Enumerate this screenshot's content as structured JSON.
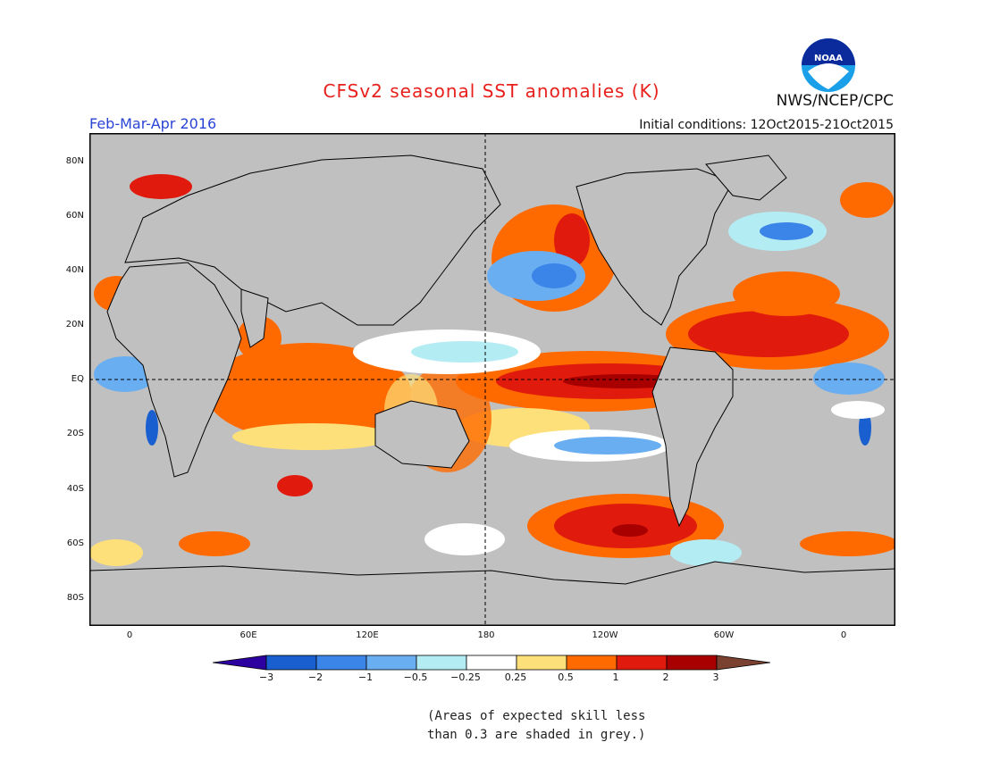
{
  "header": {
    "title": "CFSv2 seasonal SST anomalies (K)",
    "agency": "NWS/NCEP/CPC",
    "logo_text": "NOAA",
    "period": "Feb-Mar-Apr 2016",
    "initial_conditions": "Initial conditions: 12Oct2015-21Oct2015"
  },
  "map": {
    "lat_labels": [
      "80N",
      "60N",
      "40N",
      "20N",
      "EQ",
      "20S",
      "40S",
      "60S",
      "80S"
    ],
    "lon_labels": [
      "0",
      "60E",
      "120E",
      "180",
      "120W",
      "60W",
      "0"
    ],
    "missing_color": "#c0c0c0",
    "land_color": "#c0c0c0"
  },
  "colorbar": {
    "ticks": [
      "−3",
      "−2",
      "−1",
      "−0.5",
      "−0.25",
      "0.25",
      "0.5",
      "1",
      "2",
      "3"
    ],
    "colors": [
      "#2d00a0",
      "#1a5fd0",
      "#3b84e8",
      "#6aaef2",
      "#b4ecf4",
      "#ffffff",
      "#fde07a",
      "#ff6a00",
      "#e01a0c",
      "#a80000",
      "#7a4030"
    ]
  },
  "footnote": {
    "line1": "(Areas of expected skill less",
    "line2": "than 0.3 are shaded in grey.)"
  }
}
